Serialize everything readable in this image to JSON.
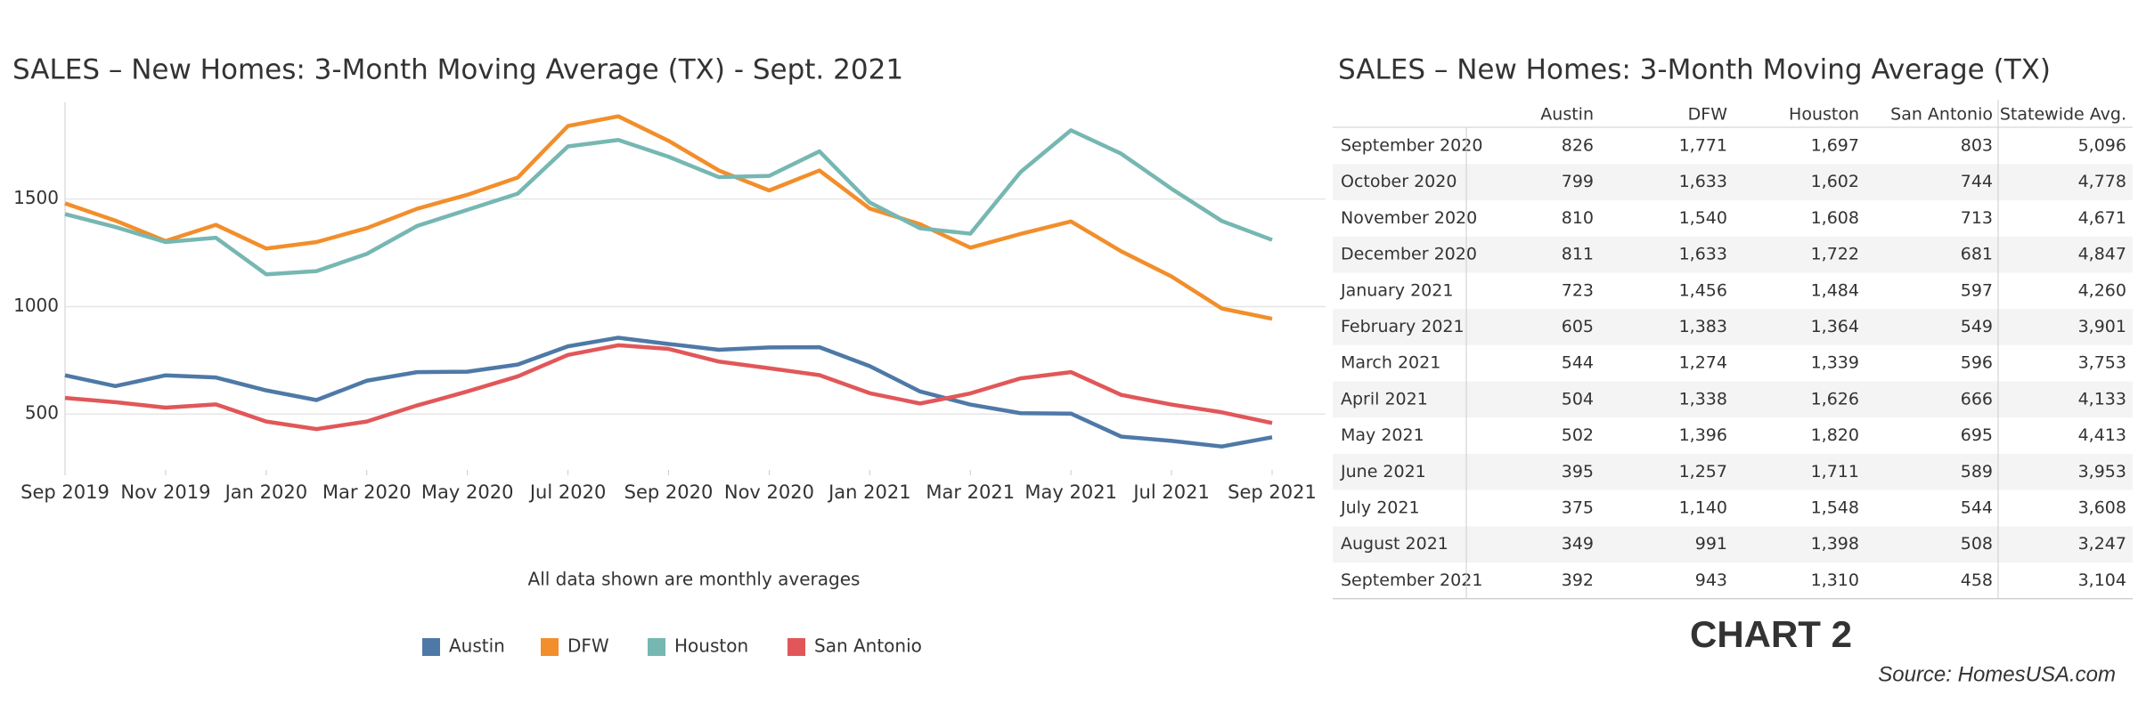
{
  "chart_data": {
    "type": "line",
    "title": "SALES – New Homes: 3-Month Moving Average (TX)  - Sept. 2021",
    "x": [
      "2019-09",
      "2019-10",
      "2019-11",
      "2019-12",
      "2020-01",
      "2020-02",
      "2020-03",
      "2020-04",
      "2020-05",
      "2020-06",
      "2020-07",
      "2020-08",
      "2020-09",
      "2020-10",
      "2020-11",
      "2020-12",
      "2021-01",
      "2021-02",
      "2021-03",
      "2021-04",
      "2021-05",
      "2021-06",
      "2021-07",
      "2021-08",
      "2021-09"
    ],
    "xticks": [
      {
        "value": "2019-09",
        "label": "Sep 2019"
      },
      {
        "value": "2019-11",
        "label": "Nov 2019"
      },
      {
        "value": "2020-01",
        "label": "Jan 2020"
      },
      {
        "value": "2020-03",
        "label": "Mar 2020"
      },
      {
        "value": "2020-05",
        "label": "May 2020"
      },
      {
        "value": "2020-07",
        "label": "Jul 2020"
      },
      {
        "value": "2020-09",
        "label": "Sep 2020"
      },
      {
        "value": "2020-11",
        "label": "Nov 2020"
      },
      {
        "value": "2021-01",
        "label": "Jan 2021"
      },
      {
        "value": "2021-03",
        "label": "Mar 2021"
      },
      {
        "value": "2021-05",
        "label": "May 2021"
      },
      {
        "value": "2021-07",
        "label": "Jul 2021"
      },
      {
        "value": "2021-09",
        "label": "Sep 2021"
      }
    ],
    "ylim": [
      240,
      1950
    ],
    "yticks": [
      500,
      1000,
      1500
    ],
    "grid": true,
    "series": [
      {
        "name": "Austin",
        "color": "#4e79a7",
        "values": [
          680,
          630,
          680,
          670,
          610,
          565,
          655,
          695,
          697,
          730,
          815,
          855,
          826,
          799,
          810,
          811,
          723,
          605,
          544,
          504,
          502,
          395,
          375,
          349,
          392
        ]
      },
      {
        "name": "DFW",
        "color": "#f28e2b",
        "values": [
          1480,
          1400,
          1305,
          1380,
          1270,
          1300,
          1365,
          1455,
          1520,
          1600,
          1840,
          1885,
          1771,
          1633,
          1540,
          1633,
          1456,
          1383,
          1274,
          1338,
          1396,
          1257,
          1140,
          991,
          943
        ]
      },
      {
        "name": "Houston",
        "color": "#76b7b2",
        "values": [
          1430,
          1370,
          1300,
          1320,
          1150,
          1165,
          1245,
          1375,
          1450,
          1525,
          1745,
          1775,
          1697,
          1602,
          1608,
          1722,
          1484,
          1364,
          1339,
          1626,
          1820,
          1711,
          1548,
          1398,
          1310
        ]
      },
      {
        "name": "San Antonio",
        "color": "#e15759",
        "values": [
          575,
          555,
          530,
          545,
          465,
          430,
          465,
          540,
          605,
          675,
          775,
          820,
          803,
          744,
          713,
          681,
          597,
          549,
          596,
          666,
          695,
          589,
          544,
          508,
          458
        ]
      }
    ],
    "note": "All data shown are monthly averages"
  },
  "table": {
    "title": "SALES – New Homes:  3-Month Moving Average (TX)",
    "columns": [
      "Austin",
      "DFW",
      "Houston",
      "San Antonio",
      "Statewide Avg."
    ],
    "rows": [
      [
        "September 2020",
        "826",
        "1,771",
        "1,697",
        "803",
        "5,096"
      ],
      [
        "October 2020",
        "799",
        "1,633",
        "1,602",
        "744",
        "4,778"
      ],
      [
        "November 2020",
        "810",
        "1,540",
        "1,608",
        "713",
        "4,671"
      ],
      [
        "December 2020",
        "811",
        "1,633",
        "1,722",
        "681",
        "4,847"
      ],
      [
        "January 2021",
        "723",
        "1,456",
        "1,484",
        "597",
        "4,260"
      ],
      [
        "February 2021",
        "605",
        "1,383",
        "1,364",
        "549",
        "3,901"
      ],
      [
        "March 2021",
        "544",
        "1,274",
        "1,339",
        "596",
        "3,753"
      ],
      [
        "April 2021",
        "504",
        "1,338",
        "1,626",
        "666",
        "4,133"
      ],
      [
        "May 2021",
        "502",
        "1,396",
        "1,820",
        "695",
        "4,413"
      ],
      [
        "June 2021",
        "395",
        "1,257",
        "1,711",
        "589",
        "3,953"
      ],
      [
        "July 2021",
        "375",
        "1,140",
        "1,548",
        "544",
        "3,608"
      ],
      [
        "August 2021",
        "349",
        "991",
        "1,398",
        "508",
        "3,247"
      ],
      [
        "September 2021",
        "392",
        "943",
        "1,310",
        "458",
        "3,104"
      ]
    ]
  },
  "chart_label": "CHART 2",
  "source": "Source: HomesUSA.com"
}
